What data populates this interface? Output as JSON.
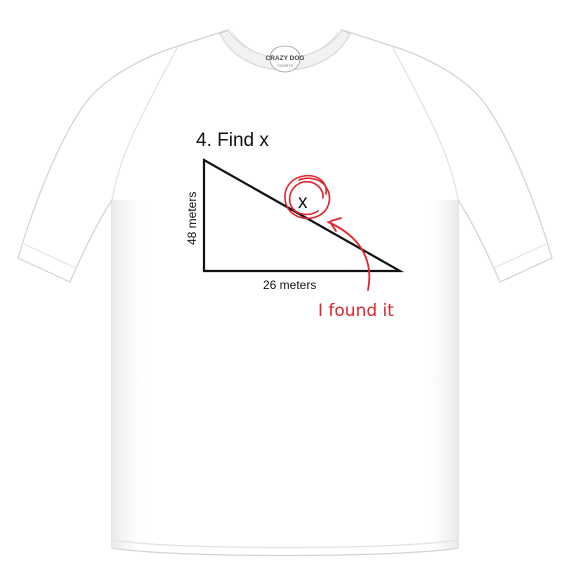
{
  "shirt": {
    "color": "#ffffff",
    "shadow_color": "#e6e6e6",
    "outline_color": "#d2d2d2"
  },
  "tag": {
    "brand": "CRAZY DOG",
    "sub": "TSHIRTS"
  },
  "print": {
    "title": "4. Find x",
    "height_label": "48 meters",
    "base_label": "26 meters",
    "x_mark": "x",
    "answer": "I found it",
    "ink_color": "#111111",
    "marker_color": "#e0242b"
  }
}
